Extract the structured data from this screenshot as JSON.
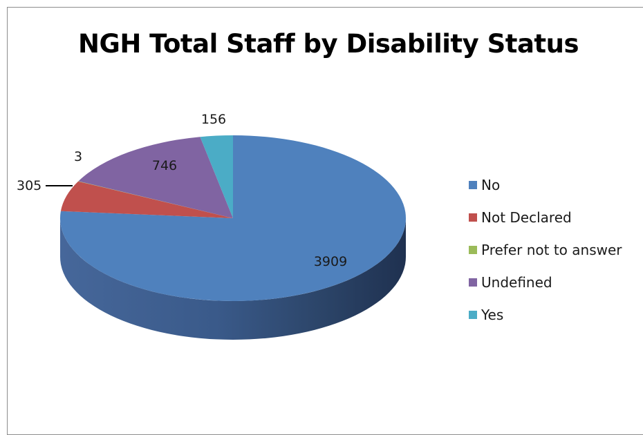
{
  "chart_data": {
    "type": "pie",
    "title": "NGH Total Staff by Disability Status",
    "three_d": true,
    "legend_position": "right",
    "categories": [
      "No",
      "Not Declared",
      "Prefer not to answer",
      "Undefined",
      "Yes"
    ],
    "values": [
      3909,
      305,
      3,
      746,
      156
    ],
    "colors": [
      "#4f81bd",
      "#c0504d",
      "#9bbb59",
      "#8064a2",
      "#4bacc6"
    ],
    "data_labels": [
      "3909",
      "305",
      "3",
      "746",
      "156"
    ]
  }
}
